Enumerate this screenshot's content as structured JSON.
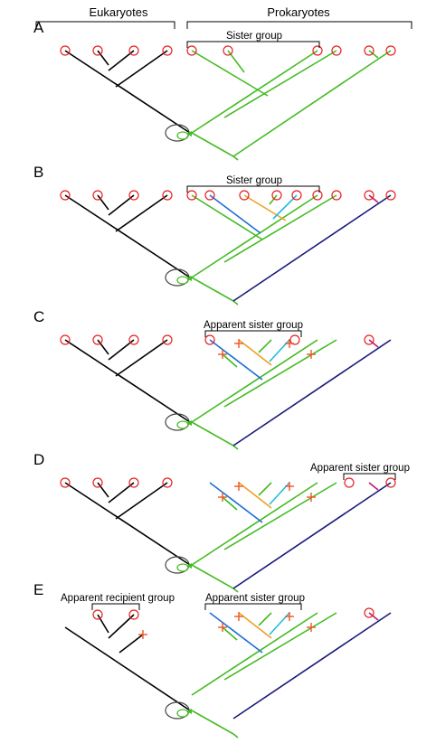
{
  "headers": {
    "eukaryotes": "Eukaryotes",
    "prokaryotes": "Prokaryotes"
  },
  "colors": {
    "eukaryote_branch": "#000000",
    "prokaryote_branch": "#44bb22",
    "blue_branch": "#1f6fd6",
    "orange_branch": "#f0a020",
    "cyan_branch": "#22bbdd",
    "magenta_branch": "#c0186a",
    "navy_branch": "#1a1a7a",
    "tip_circle": "#e62020",
    "extinction_cross": "#ee5522"
  },
  "icons": {
    "tip": "red-circle-icon",
    "extinct": "red-cross-icon",
    "endosymbiosis": "engulfed-cell-icon"
  },
  "panels": [
    {
      "letter": "A",
      "bracket_label": "Sister group",
      "left_label": ""
    },
    {
      "letter": "B",
      "bracket_label": "Sister group",
      "left_label": ""
    },
    {
      "letter": "C",
      "bracket_label": "Apparent sister group",
      "left_label": ""
    },
    {
      "letter": "D",
      "bracket_label": "Apparent sister group",
      "left_label": ""
    },
    {
      "letter": "E",
      "bracket_label": "Apparent sister group",
      "left_label": "Apparent recipient group"
    }
  ]
}
